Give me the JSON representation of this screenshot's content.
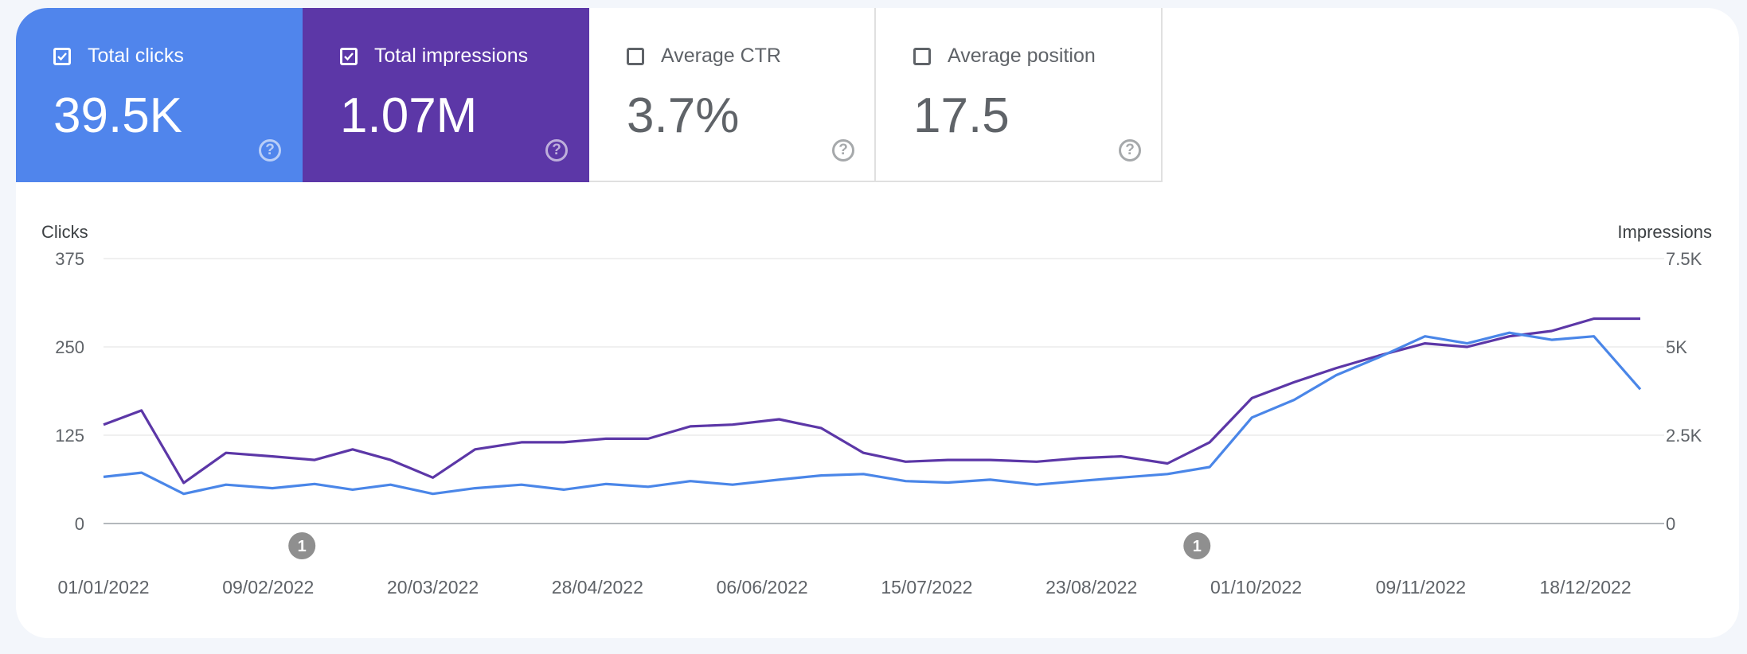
{
  "metrics": [
    {
      "label": "Total clicks",
      "value": "39.5K",
      "selected": true,
      "color": "#5085ec"
    },
    {
      "label": "Total impressions",
      "value": "1.07M",
      "selected": true,
      "color": "#5c37a7"
    },
    {
      "label": "Average CTR",
      "value": "3.7%",
      "selected": false
    },
    {
      "label": "Average position",
      "value": "17.5",
      "selected": false
    }
  ],
  "chart_data": {
    "type": "line",
    "left_axis": {
      "title": "Clicks",
      "ticks": [
        "0",
        "125",
        "250",
        "375"
      ],
      "range": [
        0,
        375
      ]
    },
    "right_axis": {
      "title": "Impressions",
      "ticks": [
        "0",
        "2.5K",
        "5K",
        "7.5K"
      ],
      "range": [
        0,
        7500
      ]
    },
    "x_ticks": [
      "01/01/2022",
      "09/02/2022",
      "20/03/2022",
      "28/04/2022",
      "06/06/2022",
      "15/07/2022",
      "23/08/2022",
      "01/10/2022",
      "09/11/2022",
      "18/12/2022"
    ],
    "x_range": [
      "01/01/2022",
      "31/12/2022"
    ],
    "annotations": [
      {
        "date": "17/02/2022",
        "label": "1"
      },
      {
        "date": "17/09/2022",
        "label": "1"
      }
    ],
    "grid": true,
    "series": [
      {
        "axis": "left",
        "color": "#4a86e8",
        "x": [
          "01/01/2022",
          "10/01/2022",
          "20/01/2022",
          "30/01/2022",
          "10/02/2022",
          "20/02/2022",
          "01/03/2022",
          "10/03/2022",
          "20/03/2022",
          "30/03/2022",
          "10/04/2022",
          "20/04/2022",
          "30/04/2022",
          "10/05/2022",
          "20/05/2022",
          "30/05/2022",
          "10/06/2022",
          "20/06/2022",
          "30/06/2022",
          "10/07/2022",
          "20/07/2022",
          "30/07/2022",
          "10/08/2022",
          "20/08/2022",
          "30/08/2022",
          "10/09/2022",
          "20/09/2022",
          "30/09/2022",
          "10/10/2022",
          "20/10/2022",
          "30/10/2022",
          "10/11/2022",
          "20/11/2022",
          "30/11/2022",
          "10/12/2022",
          "20/12/2022",
          "31/12/2022"
        ],
        "values": [
          66,
          72,
          42,
          55,
          50,
          56,
          48,
          55,
          42,
          50,
          55,
          48,
          56,
          52,
          60,
          55,
          62,
          68,
          70,
          60,
          58,
          62,
          55,
          60,
          65,
          70,
          80,
          150,
          175,
          210,
          235,
          265,
          255,
          270,
          260,
          265,
          190
        ]
      },
      {
        "axis": "right",
        "color": "#5c37a7",
        "x": [
          "01/01/2022",
          "10/01/2022",
          "20/01/2022",
          "30/01/2022",
          "10/02/2022",
          "20/02/2022",
          "01/03/2022",
          "10/03/2022",
          "20/03/2022",
          "30/03/2022",
          "10/04/2022",
          "20/04/2022",
          "30/04/2022",
          "10/05/2022",
          "20/05/2022",
          "30/05/2022",
          "10/06/2022",
          "20/06/2022",
          "30/06/2022",
          "10/07/2022",
          "20/07/2022",
          "30/07/2022",
          "10/08/2022",
          "20/08/2022",
          "30/08/2022",
          "10/09/2022",
          "20/09/2022",
          "30/09/2022",
          "10/10/2022",
          "20/10/2022",
          "30/10/2022",
          "10/11/2022",
          "20/11/2022",
          "30/11/2022",
          "10/12/2022",
          "20/12/2022",
          "31/12/2022"
        ],
        "values": [
          2800,
          3200,
          1150,
          2000,
          1900,
          1800,
          2100,
          1800,
          1300,
          2100,
          2300,
          2300,
          2400,
          2400,
          2750,
          2800,
          2950,
          2700,
          2000,
          1750,
          1800,
          1800,
          1750,
          1850,
          1900,
          1700,
          2300,
          3550,
          4000,
          4400,
          4750,
          5100,
          5000,
          5300,
          5450,
          5800,
          5800
        ]
      }
    ]
  }
}
